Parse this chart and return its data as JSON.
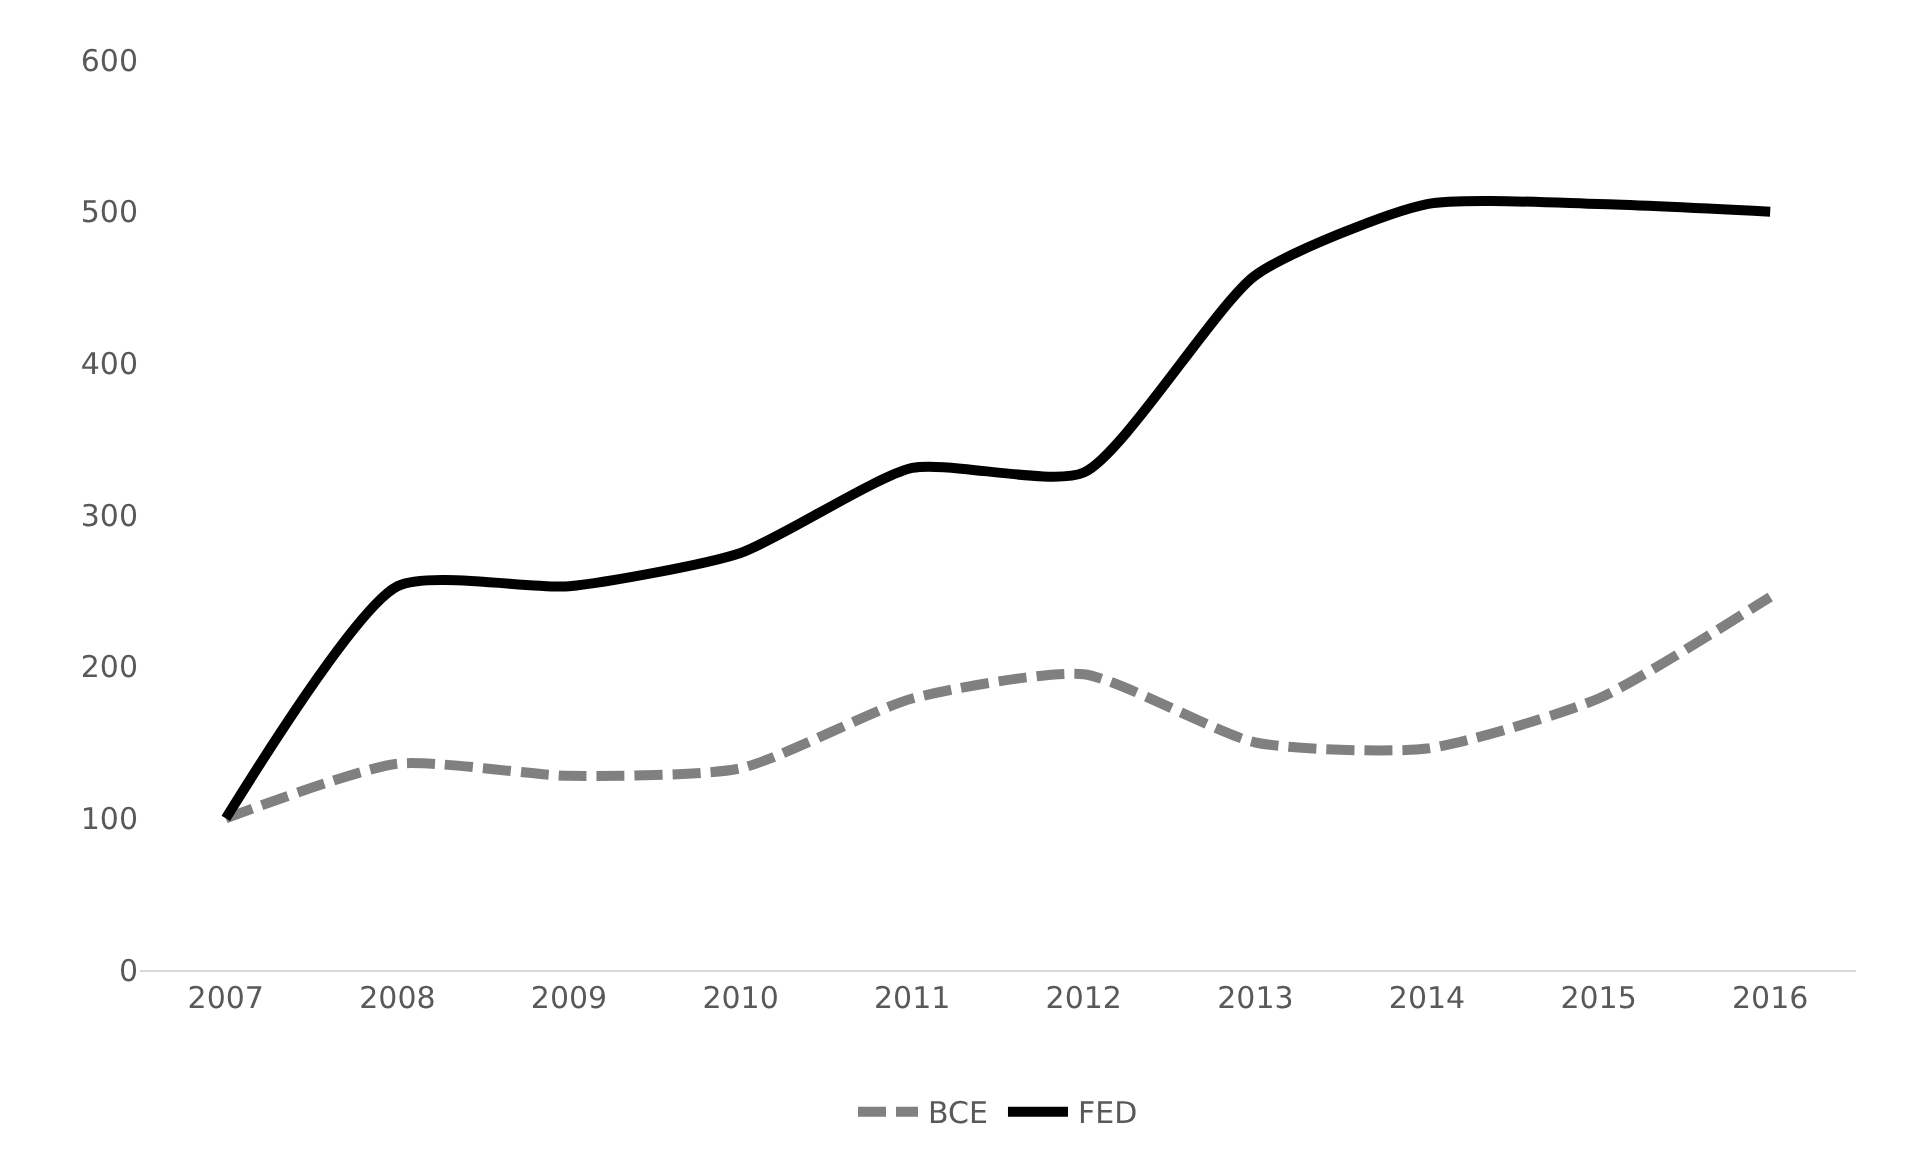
{
  "chart_data": {
    "type": "line",
    "categories": [
      "2007",
      "2008",
      "2009",
      "2010",
      "2011",
      "2012",
      "2013",
      "2014",
      "2015",
      "2016"
    ],
    "series": [
      {
        "name": "BCE",
        "color": "#808080",
        "line_style": "dashed",
        "values": [
          100,
          136,
          128,
          133,
          179,
          195,
          150,
          146,
          179,
          246
        ]
      },
      {
        "name": "FED",
        "color": "#000000",
        "line_style": "solid",
        "values": [
          100,
          253,
          253,
          275,
          331,
          328,
          458,
          505,
          505,
          500
        ]
      }
    ],
    "ylim": [
      0,
      600
    ],
    "yticks": [
      0,
      100,
      200,
      300,
      400,
      500,
      600
    ],
    "grid": false,
    "legend": "bottom",
    "marker": "none"
  }
}
